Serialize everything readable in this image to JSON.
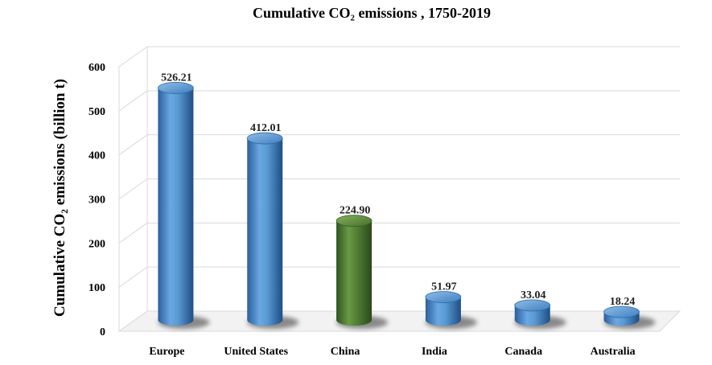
{
  "chart_data": {
    "type": "bar",
    "title": "Cumulative CO₂ emissions , 1750-2019",
    "ylabel": "Cumulative CO₂ emissions (billion t)",
    "xlabel": "",
    "categories": [
      "Europe",
      "United States",
      "China",
      "India",
      "Canada",
      "Australia"
    ],
    "values": [
      526.21,
      412.01,
      224.9,
      51.97,
      33.04,
      18.24
    ],
    "value_labels": [
      "526.21",
      "412.01",
      "224.90",
      "51.97",
      "33.04",
      "18.24"
    ],
    "ylim": [
      0,
      600
    ],
    "yticks": [
      "0",
      "100",
      "200",
      "300",
      "400",
      "500",
      "600"
    ],
    "grid": true,
    "style": "3d-cylinder",
    "colors": {
      "default": "#5b9bd5",
      "highlight": "#548235",
      "highlight_category": "China",
      "grid": "#d9d9d9"
    }
  }
}
